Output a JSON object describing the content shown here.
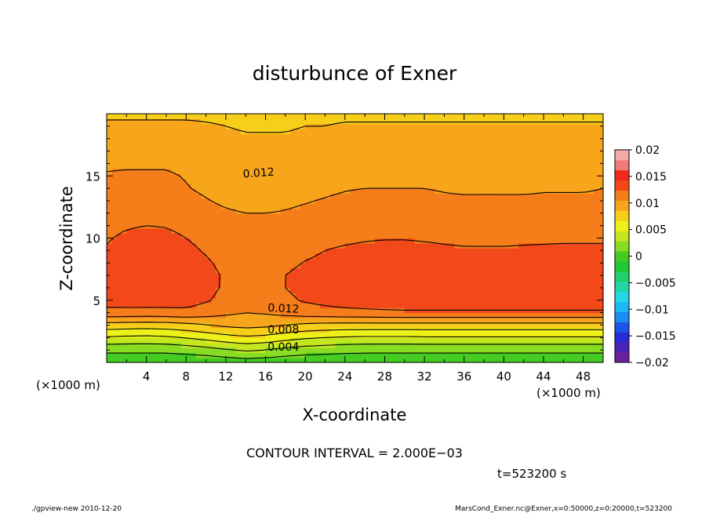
{
  "chart_data": {
    "type": "heatmap",
    "title": "disturbunce of Exner",
    "xlabel": "X-coordinate",
    "ylabel": "Z-coordinate",
    "xunit_left": "(×1000 m)",
    "xunit_right": "(×1000 m)",
    "xlim": [
      0,
      50
    ],
    "ylim": [
      0,
      20
    ],
    "xticks": [
      "4",
      "8",
      "12",
      "16",
      "20",
      "24",
      "28",
      "32",
      "36",
      "40",
      "44",
      "48"
    ],
    "yticks": [
      "5",
      "10",
      "15"
    ],
    "colorbar_ticks": [
      "0.02",
      "0.015",
      "0.01",
      "0.005",
      "0",
      "−0.005",
      "−0.01",
      "−0.015",
      "−0.02"
    ],
    "contour_labels": [
      "0.012",
      "0.012",
      "0.008",
      "0.004"
    ],
    "contour_interval_text": "CONTOUR INTERVAL = 2.000E−03",
    "time_text": "t=523200 s",
    "footer_left": "./gpview-new   2010-12-20",
    "footer_right": "MarsCond_Exner.nc@Exner,x=0:50000,z=0:20000,t=523200",
    "levels": [
      -0.02,
      -0.018,
      -0.016,
      -0.014,
      -0.012,
      -0.01,
      -0.008,
      -0.006,
      -0.004,
      -0.002,
      0,
      0.002,
      0.004,
      0.006,
      0.008,
      0.01,
      0.012,
      0.014,
      0.016,
      0.018,
      0.02
    ],
    "palette": [
      "#6b1f9c",
      "#4b23b8",
      "#2a2ad8",
      "#1c55e8",
      "#1c8cf2",
      "#1cb8f2",
      "#22d8e2",
      "#23d6a8",
      "#22cf6a",
      "#22c832",
      "#44cc22",
      "#88dd22",
      "#c4e61f",
      "#eef01a",
      "#f7cf1a",
      "#f7a51a",
      "#f57d1a",
      "#f2481a",
      "#ee2a1a",
      "#f27a7a",
      "#f7aaaa"
    ],
    "grid_x": [
      0,
      2,
      4,
      6,
      8,
      10,
      12,
      14,
      16,
      18,
      20,
      22,
      24,
      26,
      28,
      30,
      32,
      34,
      36,
      38,
      40,
      42,
      44,
      46,
      48,
      50
    ],
    "grid_z": [
      0,
      1,
      2,
      3,
      4,
      5,
      6,
      7,
      8,
      9,
      10,
      11,
      12,
      13,
      14,
      15,
      16,
      17,
      18,
      19,
      20
    ],
    "rows": [
      [
        0.0005,
        0.0005,
        0.0005,
        0.0005,
        0.0005,
        0.0005,
        0.0007,
        0.001,
        0.0008,
        0.0006,
        0.0005,
        0.0005,
        0.0005,
        0.0005,
        0.0005,
        0.0005,
        0.0005,
        0.0005,
        0.0005,
        0.0005,
        0.0005,
        0.0005,
        0.0005,
        0.0005,
        0.0005,
        0.0005
      ],
      [
        0.0025,
        0.0025,
        0.0025,
        0.0025,
        0.0028,
        0.0032,
        0.0038,
        0.0043,
        0.004,
        0.0034,
        0.003,
        0.0028,
        0.0026,
        0.0025,
        0.0025,
        0.0025,
        0.0025,
        0.0025,
        0.0025,
        0.0025,
        0.0025,
        0.0025,
        0.0025,
        0.0025,
        0.0025,
        0.0025
      ],
      [
        0.0058,
        0.0056,
        0.0055,
        0.0057,
        0.0061,
        0.0067,
        0.0073,
        0.0077,
        0.0074,
        0.0068,
        0.0063,
        0.006,
        0.0058,
        0.0057,
        0.0057,
        0.0057,
        0.0058,
        0.0058,
        0.0058,
        0.0058,
        0.0058,
        0.0058,
        0.0058,
        0.0058,
        0.0058,
        0.0058
      ],
      [
        0.0092,
        0.0091,
        0.009,
        0.0091,
        0.0094,
        0.0099,
        0.0104,
        0.0107,
        0.0105,
        0.01,
        0.0096,
        0.0094,
        0.0093,
        0.0093,
        0.0093,
        0.0093,
        0.0093,
        0.0093,
        0.0093,
        0.0093,
        0.0093,
        0.0093,
        0.0093,
        0.0093,
        0.0093,
        0.0093
      ],
      [
        0.0134,
        0.0133,
        0.0132,
        0.0133,
        0.0135,
        0.013,
        0.0124,
        0.012,
        0.0122,
        0.0126,
        0.013,
        0.0132,
        0.0134,
        0.0135,
        0.0136,
        0.0137,
        0.0137,
        0.0137,
        0.0137,
        0.0137,
        0.0137,
        0.0137,
        0.0137,
        0.0137,
        0.0137,
        0.0137
      ],
      [
        0.0148,
        0.015,
        0.0151,
        0.015,
        0.0148,
        0.0142,
        0.0134,
        0.013,
        0.0131,
        0.0136,
        0.0142,
        0.0146,
        0.0149,
        0.0151,
        0.0152,
        0.0152,
        0.0152,
        0.0152,
        0.0152,
        0.0152,
        0.0152,
        0.0152,
        0.0152,
        0.0152,
        0.0152,
        0.0152
      ],
      [
        0.015,
        0.0154,
        0.0156,
        0.0155,
        0.0152,
        0.0146,
        0.0137,
        0.0133,
        0.0134,
        0.014,
        0.0146,
        0.015,
        0.0153,
        0.0155,
        0.0156,
        0.0157,
        0.0157,
        0.0157,
        0.0157,
        0.0157,
        0.0157,
        0.0157,
        0.0157,
        0.0156,
        0.0156,
        0.0155
      ],
      [
        0.015,
        0.0155,
        0.0157,
        0.0156,
        0.0153,
        0.0147,
        0.0137,
        0.0133,
        0.0133,
        0.014,
        0.0146,
        0.0151,
        0.0154,
        0.0156,
        0.0157,
        0.0158,
        0.0158,
        0.0158,
        0.0158,
        0.0158,
        0.0158,
        0.0158,
        0.0158,
        0.0157,
        0.0157,
        0.0156
      ],
      [
        0.0147,
        0.0153,
        0.0155,
        0.0154,
        0.015,
        0.0143,
        0.0134,
        0.013,
        0.013,
        0.0135,
        0.0141,
        0.0145,
        0.015,
        0.0152,
        0.0154,
        0.0155,
        0.0155,
        0.0155,
        0.0154,
        0.0154,
        0.0154,
        0.0154,
        0.0154,
        0.0154,
        0.0154,
        0.0153
      ],
      [
        0.0142,
        0.015,
        0.0153,
        0.015,
        0.0145,
        0.0138,
        0.013,
        0.0127,
        0.0127,
        0.013,
        0.0135,
        0.014,
        0.0143,
        0.0145,
        0.0146,
        0.0146,
        0.0145,
        0.0143,
        0.0142,
        0.0142,
        0.0142,
        0.0143,
        0.0143,
        0.0144,
        0.0144,
        0.0144
      ],
      [
        0.0138,
        0.0144,
        0.0147,
        0.0145,
        0.014,
        0.0134,
        0.0128,
        0.0125,
        0.0125,
        0.0127,
        0.013,
        0.0134,
        0.0136,
        0.0138,
        0.0139,
        0.0139,
        0.0138,
        0.0137,
        0.0136,
        0.0136,
        0.0136,
        0.0136,
        0.0137,
        0.0137,
        0.0137,
        0.0137
      ],
      [
        0.0134,
        0.0138,
        0.014,
        0.0139,
        0.0135,
        0.013,
        0.0126,
        0.0124,
        0.0124,
        0.0125,
        0.0127,
        0.013,
        0.0132,
        0.0133,
        0.0133,
        0.0133,
        0.0132,
        0.0131,
        0.0131,
        0.0131,
        0.0131,
        0.0131,
        0.0131,
        0.0131,
        0.0131,
        0.0131
      ],
      [
        0.013,
        0.0133,
        0.0135,
        0.0134,
        0.013,
        0.0126,
        0.0122,
        0.012,
        0.012,
        0.0121,
        0.0123,
        0.0125,
        0.0127,
        0.0128,
        0.0128,
        0.0128,
        0.0127,
        0.0127,
        0.0126,
        0.0126,
        0.0126,
        0.0126,
        0.0126,
        0.0126,
        0.0126,
        0.0126
      ],
      [
        0.0126,
        0.0128,
        0.013,
        0.0129,
        0.0125,
        0.0121,
        0.0117,
        0.0115,
        0.0115,
        0.0117,
        0.0119,
        0.0121,
        0.0123,
        0.0124,
        0.0124,
        0.0123,
        0.0123,
        0.0122,
        0.0122,
        0.0122,
        0.0122,
        0.0122,
        0.0122,
        0.0122,
        0.0122,
        0.0122
      ],
      [
        0.0122,
        0.0124,
        0.0126,
        0.0125,
        0.0121,
        0.0117,
        0.0113,
        0.0111,
        0.0111,
        0.0113,
        0.0115,
        0.0117,
        0.0119,
        0.012,
        0.012,
        0.012,
        0.012,
        0.0119,
        0.0118,
        0.0118,
        0.0118,
        0.0118,
        0.0119,
        0.0119,
        0.0119,
        0.012
      ],
      [
        0.0121,
        0.0122,
        0.0122,
        0.0122,
        0.0119,
        0.0115,
        0.0111,
        0.0109,
        0.0109,
        0.0111,
        0.0113,
        0.0114,
        0.0116,
        0.0117,
        0.0117,
        0.0117,
        0.0116,
        0.0116,
        0.0115,
        0.0115,
        0.0115,
        0.0115,
        0.0116,
        0.0116,
        0.0117,
        0.0117
      ],
      [
        0.0118,
        0.0118,
        0.0118,
        0.0118,
        0.0116,
        0.0113,
        0.011,
        0.0108,
        0.0108,
        0.0109,
        0.011,
        0.0111,
        0.0112,
        0.0112,
        0.0112,
        0.0112,
        0.0112,
        0.0112,
        0.0112,
        0.0112,
        0.0112,
        0.0112,
        0.0112,
        0.0112,
        0.0112,
        0.0112
      ],
      [
        0.0112,
        0.0112,
        0.0112,
        0.0112,
        0.0111,
        0.0109,
        0.0106,
        0.0105,
        0.0105,
        0.0105,
        0.0106,
        0.0107,
        0.0107,
        0.0108,
        0.0108,
        0.0108,
        0.0108,
        0.0107,
        0.0107,
        0.0107,
        0.0107,
        0.0107,
        0.0107,
        0.0107,
        0.0107,
        0.0107
      ],
      [
        0.0106,
        0.0106,
        0.0106,
        0.0106,
        0.0105,
        0.0104,
        0.0102,
        0.0101,
        0.0101,
        0.0101,
        0.0102,
        0.0102,
        0.0103,
        0.0103,
        0.0103,
        0.0103,
        0.0103,
        0.0103,
        0.0103,
        0.0103,
        0.0103,
        0.0103,
        0.0103,
        0.0103,
        0.0103,
        0.0103
      ],
      [
        0.0102,
        0.0102,
        0.0102,
        0.0102,
        0.0102,
        0.0101,
        0.01,
        0.0099,
        0.0099,
        0.0099,
        0.01,
        0.01,
        0.0101,
        0.0101,
        0.0101,
        0.0101,
        0.0101,
        0.0101,
        0.0101,
        0.0101,
        0.0101,
        0.0101,
        0.0101,
        0.0101,
        0.0101,
        0.0101
      ],
      [
        0.0098,
        0.0098,
        0.0098,
        0.0098,
        0.0098,
        0.0098,
        0.0098,
        0.0098,
        0.0098,
        0.0098,
        0.0098,
        0.0098,
        0.0098,
        0.0098,
        0.0098,
        0.0098,
        0.0098,
        0.0098,
        0.0098,
        0.0098,
        0.0098,
        0.0098,
        0.0098,
        0.0098,
        0.0098,
        0.0098
      ]
    ]
  }
}
